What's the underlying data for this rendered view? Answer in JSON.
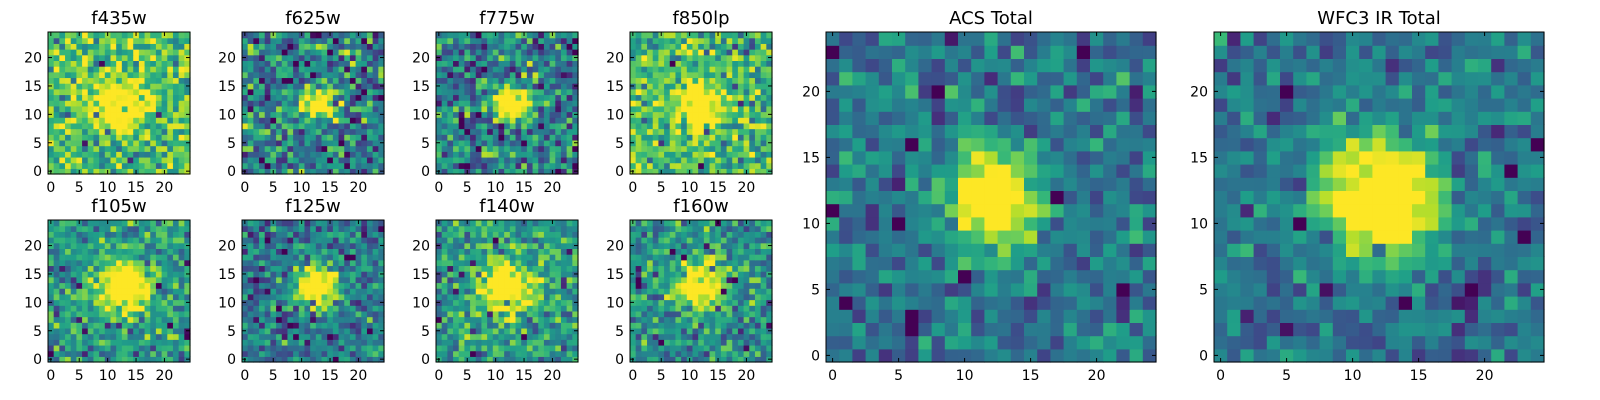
{
  "chart_data": [
    {
      "type": "heatmap",
      "title": "f435w",
      "xlim": [
        0,
        24
      ],
      "ylim": [
        0,
        24
      ],
      "xticks": [
        0,
        5,
        10,
        15,
        20
      ],
      "yticks": [
        0,
        5,
        10,
        15,
        20
      ],
      "source_center": [
        12,
        12
      ],
      "source_radius": 2.8,
      "background": 0.72,
      "peak": 1.0,
      "noise": 0.2,
      "seed": 11
    },
    {
      "type": "heatmap",
      "title": "f625w",
      "xlim": [
        0,
        24
      ],
      "ylim": [
        0,
        24
      ],
      "xticks": [
        0,
        5,
        10,
        15,
        20
      ],
      "yticks": [
        0,
        5,
        10,
        15,
        20
      ],
      "source_center": [
        13,
        12
      ],
      "source_radius": 2.0,
      "background": 0.45,
      "peak": 1.0,
      "noise": 0.25,
      "seed": 23
    },
    {
      "type": "heatmap",
      "title": "f775w",
      "xlim": [
        0,
        24
      ],
      "ylim": [
        0,
        24
      ],
      "xticks": [
        0,
        5,
        10,
        15,
        20
      ],
      "yticks": [
        0,
        5,
        10,
        15,
        20
      ],
      "source_center": [
        13,
        12
      ],
      "source_radius": 2.0,
      "background": 0.45,
      "peak": 1.0,
      "noise": 0.25,
      "seed": 37
    },
    {
      "type": "heatmap",
      "title": "f850lp",
      "xlim": [
        0,
        24
      ],
      "ylim": [
        0,
        24
      ],
      "xticks": [
        0,
        5,
        10,
        15,
        20
      ],
      "yticks": [
        0,
        5,
        10,
        15,
        20
      ],
      "source_center": [
        12,
        12
      ],
      "source_radius": 2.8,
      "background": 0.68,
      "peak": 1.0,
      "noise": 0.22,
      "seed": 41
    },
    {
      "type": "heatmap",
      "title": "f105w",
      "xlim": [
        0,
        24
      ],
      "ylim": [
        0,
        24
      ],
      "xticks": [
        0,
        5,
        10,
        15,
        20
      ],
      "yticks": [
        0,
        5,
        10,
        15,
        20
      ],
      "source_center": [
        13,
        13
      ],
      "source_radius": 3.0,
      "background": 0.55,
      "peak": 1.0,
      "noise": 0.18,
      "seed": 53
    },
    {
      "type": "heatmap",
      "title": "f125w",
      "xlim": [
        0,
        24
      ],
      "ylim": [
        0,
        24
      ],
      "xticks": [
        0,
        5,
        10,
        15,
        20
      ],
      "yticks": [
        0,
        5,
        10,
        15,
        20
      ],
      "source_center": [
        13,
        13
      ],
      "source_radius": 2.5,
      "background": 0.4,
      "peak": 1.0,
      "noise": 0.2,
      "seed": 67
    },
    {
      "type": "heatmap",
      "title": "f140w",
      "xlim": [
        0,
        24
      ],
      "ylim": [
        0,
        24
      ],
      "xticks": [
        0,
        5,
        10,
        15,
        20
      ],
      "yticks": [
        0,
        5,
        10,
        15,
        20
      ],
      "source_center": [
        12,
        13
      ],
      "source_radius": 3.0,
      "background": 0.55,
      "peak": 1.0,
      "noise": 0.2,
      "seed": 79
    },
    {
      "type": "heatmap",
      "title": "f160w",
      "xlim": [
        0,
        24
      ],
      "ylim": [
        0,
        24
      ],
      "xticks": [
        0,
        5,
        10,
        15,
        20
      ],
      "yticks": [
        0,
        5,
        10,
        15,
        20
      ],
      "source_center": [
        12,
        13
      ],
      "source_radius": 3.0,
      "background": 0.5,
      "peak": 1.0,
      "noise": 0.2,
      "seed": 97
    },
    {
      "type": "heatmap",
      "title": "ACS Total",
      "xlim": [
        0,
        24
      ],
      "ylim": [
        0,
        24
      ],
      "xticks": [
        0,
        5,
        10,
        15,
        20
      ],
      "yticks": [
        0,
        5,
        10,
        15,
        20
      ],
      "source_center": [
        12,
        12
      ],
      "source_radius": 2.3,
      "background": 0.4,
      "peak": 1.0,
      "noise": 0.16,
      "seed": 101
    },
    {
      "type": "heatmap",
      "title": "WFC3 IR Total",
      "xlim": [
        0,
        24
      ],
      "ylim": [
        0,
        24
      ],
      "xticks": [
        0,
        5,
        10,
        15,
        20
      ],
      "yticks": [
        0,
        5,
        10,
        15,
        20
      ],
      "source_center": [
        12,
        12
      ],
      "source_radius": 3.2,
      "background": 0.38,
      "peak": 1.0,
      "noise": 0.14,
      "seed": 113
    }
  ],
  "colors": {
    "viridis": [
      "#440154",
      "#482878",
      "#3e4989",
      "#31688e",
      "#26828e",
      "#1f9e89",
      "#35b779",
      "#6ece58",
      "#b5de2b",
      "#fde725"
    ],
    "axis": "#000000",
    "background": "#ffffff"
  }
}
